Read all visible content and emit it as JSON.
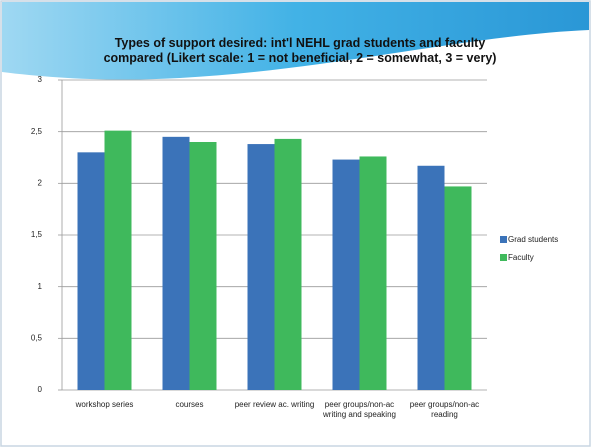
{
  "chart_data": {
    "type": "bar",
    "title": "Types of support desired: int'l NEHL grad students and faculty compared (Likert scale: 1 = not beneficial, 2 = somewhat, 3 = very)",
    "categories": [
      "workshop series",
      "courses",
      "peer review ac. writing",
      "peer groups/non-ac writing and speaking",
      "peer groups/non-ac reading"
    ],
    "series": [
      {
        "name": "Grad students",
        "color": "#3b73b9",
        "values": [
          2.3,
          2.45,
          2.38,
          2.23,
          2.17
        ]
      },
      {
        "name": "Faculty",
        "color": "#3fb95c",
        "values": [
          2.51,
          2.4,
          2.43,
          2.26,
          1.97
        ]
      }
    ],
    "ylim": [
      0,
      3
    ],
    "yticks": [
      0,
      {
        "value": 0.5,
        "label": "0,5"
      },
      1,
      {
        "value": 1.5,
        "label": "1,5"
      },
      2,
      {
        "value": 2.5,
        "label": "2,5"
      },
      3
    ],
    "grid": true,
    "legend": "right"
  }
}
